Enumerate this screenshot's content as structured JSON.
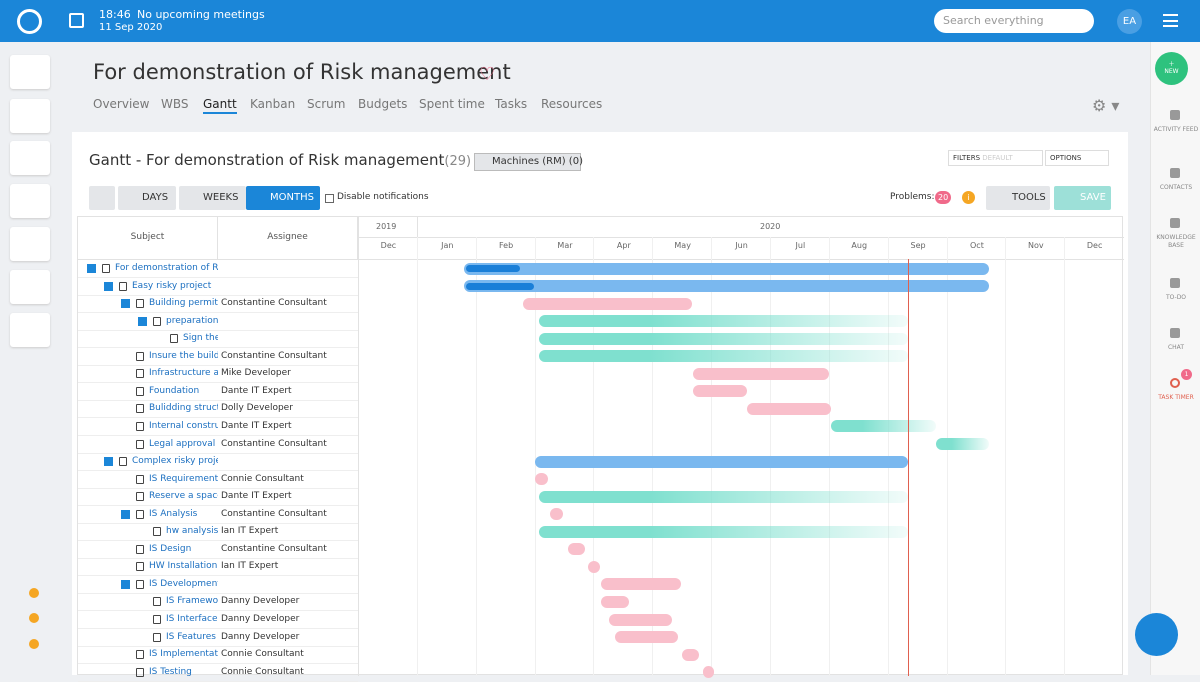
{
  "topbar": {
    "time": "18:46",
    "meetings": "No upcoming meetings",
    "date": "11 Sep 2020",
    "search_placeholder": "Search everything",
    "user": "EA"
  },
  "project": {
    "title": "For demonstration of Risk management",
    "tabs": [
      "Overview",
      "WBS",
      "Gantt",
      "Kanban",
      "Scrum",
      "Budgets",
      "Spent time",
      "Tasks",
      "Resources"
    ]
  },
  "gantt": {
    "title": "Gantt - For demonstration of Risk management",
    "count": "(29)",
    "machines": "Machines (RM) (0)",
    "filters": "FILTERS",
    "filters_value": "DEFAULT",
    "options": "OPTIONS",
    "zoom": [
      "DAYS",
      "WEEKS",
      "MONTHS"
    ],
    "disable_notifications": "Disable notifications",
    "problems_label": "Problems:",
    "problems_count": "20",
    "tools": "TOOLS",
    "save": "SAVE",
    "columns": [
      "Subject",
      "Assignee"
    ],
    "years": [
      "2019",
      "2020"
    ],
    "months": [
      "Dec",
      "Jan",
      "Feb",
      "Mar",
      "Apr",
      "May",
      "Jun",
      "Jul",
      "Aug",
      "Sep",
      "Oct",
      "Nov",
      "Dec"
    ],
    "rows": [
      {
        "subject": "For demonstration of Risk management"
      },
      {
        "subject": "Easy risky project"
      },
      {
        "subject": "Building permit",
        "assignee": "Constantine Consultant"
      },
      {
        "subject": "preparation"
      },
      {
        "subject": "Sign the"
      },
      {
        "subject": "Insure the building",
        "assignee": "Constantine Consultant"
      },
      {
        "subject": "Infrastructure and",
        "assignee": "Mike Developer"
      },
      {
        "subject": "Foundation",
        "assignee": "Dante IT Expert"
      },
      {
        "subject": "Bulidding structure",
        "assignee": "Dolly Developer"
      },
      {
        "subject": "Internal construction",
        "assignee": "Dante IT Expert"
      },
      {
        "subject": "Legal approval",
        "assignee": "Constantine Consultant"
      },
      {
        "subject": "Complex risky project"
      },
      {
        "subject": "IS Requirement collection",
        "assignee": "Connie Consultant"
      },
      {
        "subject": "Reserve a space",
        "assignee": "Dante IT Expert"
      },
      {
        "subject": "IS Analysis",
        "assignee": "Constantine Consultant"
      },
      {
        "subject": "hw analysis report",
        "assignee": "Ian IT Expert"
      },
      {
        "subject": "IS Design",
        "assignee": "Constantine Consultant"
      },
      {
        "subject": "HW Installation",
        "assignee": "Ian IT Expert"
      },
      {
        "subject": "IS Development"
      },
      {
        "subject": "IS Framework",
        "assignee": "Danny Developer"
      },
      {
        "subject": "IS Interface design",
        "assignee": "Danny Developer"
      },
      {
        "subject": "IS Features development",
        "assignee": "Danny Developer"
      },
      {
        "subject": "IS Implementation",
        "assignee": "Connie Consultant"
      },
      {
        "subject": "IS Testing",
        "assignee": "Connie Consultant"
      }
    ]
  },
  "sidebar": {
    "new": "NEW",
    "items": [
      "ACTIVITY FEED",
      "CONTACTS",
      "KNOWLEDGE BASE",
      "TO-DO",
      "CHAT",
      "TASK TIMER"
    ],
    "timer_badge": "1"
  }
}
